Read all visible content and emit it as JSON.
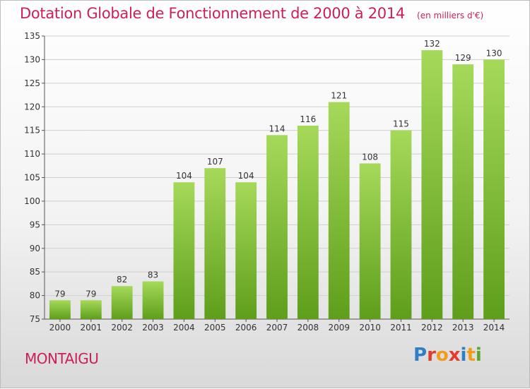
{
  "header": {
    "title": "Dotation Globale de Fonctionnement de 2000 à 2014",
    "subtitle": "(en milliers d'€)"
  },
  "footer": {
    "commune": "MONTAIGU",
    "logo_text": "Proxiti",
    "logo_colors": [
      "#2f7fc7",
      "#e53b2c",
      "#f39c1a",
      "#e53b2c",
      "#2f7fc7",
      "#f39c1a",
      "#5aa829"
    ]
  },
  "colors": {
    "bar_top": "#a6d95a",
    "bar_bottom": "#5e9e1b",
    "brand": "#cc1f5a"
  },
  "chart_data": {
    "type": "bar",
    "title": "Dotation Globale de Fonctionnement de 2000 à 2014",
    "subtitle": "(en milliers d'€)",
    "xlabel": "",
    "ylabel": "",
    "categories": [
      "2000",
      "2001",
      "2002",
      "2003",
      "2004",
      "2005",
      "2006",
      "2007",
      "2008",
      "2009",
      "2010",
      "2011",
      "2012",
      "2013",
      "2014"
    ],
    "values": [
      79,
      79,
      82,
      83,
      104,
      107,
      104,
      114,
      116,
      121,
      108,
      115,
      132,
      129,
      130
    ],
    "ylim": [
      75,
      135
    ],
    "yticks": [
      75,
      80,
      85,
      90,
      95,
      100,
      105,
      110,
      115,
      120,
      125,
      130,
      135
    ],
    "grid": true,
    "data_labels": true,
    "legend": "none"
  }
}
